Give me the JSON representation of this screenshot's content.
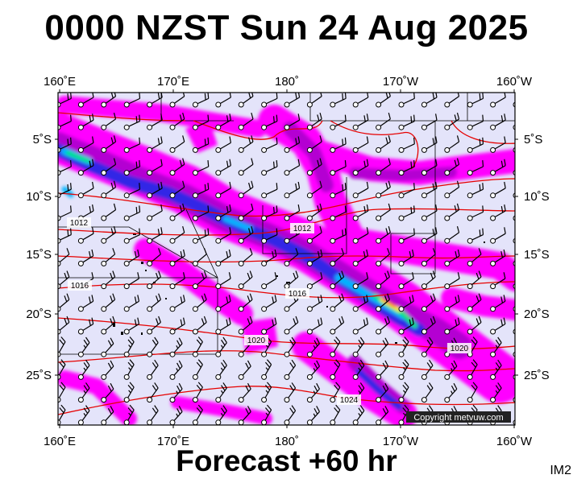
{
  "header": {
    "title": "0000 NZST Sun 24 Aug 2025"
  },
  "footer": {
    "forecast": "Forecast +60 hr",
    "tag": "IM2"
  },
  "map": {
    "lon_labels": [
      "160˚E",
      "170˚E",
      "180˚",
      "170˚W",
      "160˚W"
    ],
    "lat_labels": [
      "5˚S",
      "10˚S",
      "15˚S",
      "20˚S",
      "25˚S"
    ],
    "isobar_labels": [
      "1012",
      "1012",
      "1016",
      "1016",
      "1020",
      "1020",
      "1024"
    ],
    "copyright": "Copyright metvuw.com",
    "colors": {
      "background": "#e4e4fa",
      "rain_light": "#ff00ff",
      "rain_moderate": "#b400d2",
      "rain_heavy": "#3228e6",
      "rain_very_heavy": "#00b4ff",
      "rain_intense": "#00e678",
      "rain_extreme": "#ffeb00",
      "rain_peak": "#ff3c00",
      "isobar": "#e60000",
      "wind_barb": "#000000"
    }
  }
}
